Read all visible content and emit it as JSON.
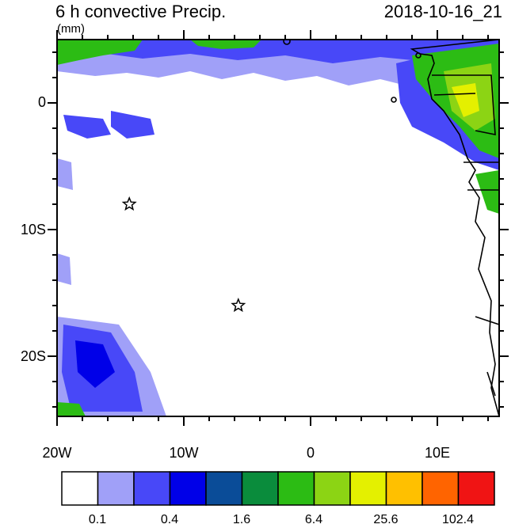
{
  "title": {
    "left": "6 h convective Precip.",
    "right": "2018-10-16_21",
    "units": "(mm)"
  },
  "axes": {
    "lat_ticks": [
      "0",
      "10S",
      "20S"
    ],
    "lon_ticks": [
      "20W",
      "10W",
      "0",
      "10E"
    ]
  },
  "colorbar": {
    "colors": [
      "#ffffff",
      "#a0a0f8",
      "#4848f8",
      "#0000e8",
      "#0a4c98",
      "#0a8c3c",
      "#2cbc14",
      "#8cd414",
      "#e4f000",
      "#ffc000",
      "#ff6400",
      "#f01414"
    ],
    "labels": [
      "0.1",
      "0.4",
      "1.6",
      "6.4",
      "25.6",
      "102.4"
    ]
  },
  "markers": [
    {
      "name": "star-1",
      "lat": -8.0,
      "lon": -14.3
    },
    {
      "name": "star-2",
      "lat": -16.0,
      "lon": -5.7
    }
  ]
}
